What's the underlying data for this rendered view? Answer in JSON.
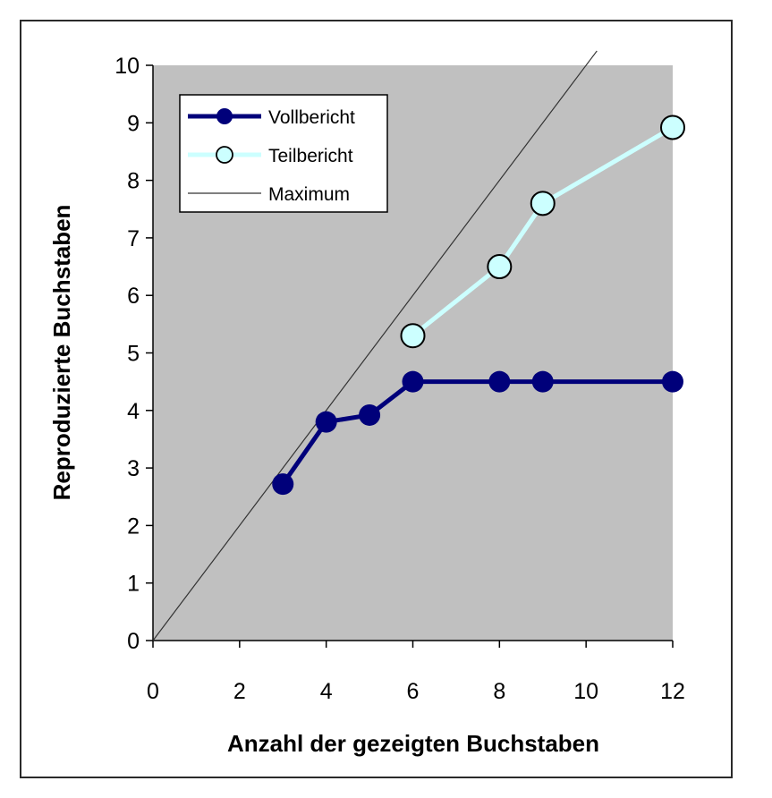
{
  "chart_data": {
    "type": "line",
    "title": "",
    "xlabel": "Anzahl der gezeigten Buchstaben",
    "ylabel": "Reproduzierte Buchstaben",
    "xlim": [
      0,
      12
    ],
    "ylim": [
      0,
      10
    ],
    "xticks": [
      0,
      2,
      4,
      6,
      8,
      10,
      12
    ],
    "yticks": [
      0,
      1,
      2,
      3,
      4,
      5,
      6,
      7,
      8,
      9,
      10
    ],
    "grid": false,
    "plot_background": "#c0c0c0",
    "legend_position": "top-left",
    "series": [
      {
        "name": "Vollbericht",
        "color": "#00007a",
        "marker": "filled-circle",
        "x": [
          3,
          4,
          5,
          6,
          8,
          9,
          12
        ],
        "y": [
          2.72,
          3.8,
          3.92,
          4.5,
          4.5,
          4.5,
          4.5
        ]
      },
      {
        "name": "Teilbericht",
        "color": "#ccffff",
        "marker": "open-circle",
        "x": [
          6,
          8,
          9,
          12
        ],
        "y": [
          5.3,
          6.5,
          7.6,
          8.92
        ]
      },
      {
        "name": "Maximum",
        "color": "#333333",
        "marker": "none",
        "x": [
          0,
          10.25
        ],
        "y": [
          0,
          10.25
        ]
      }
    ]
  }
}
